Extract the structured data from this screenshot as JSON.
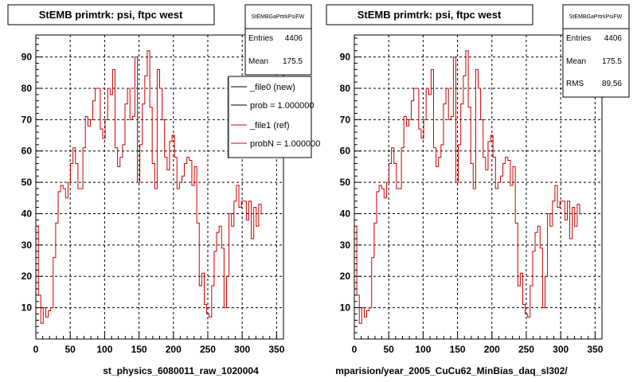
{
  "panels": [
    {
      "title": "StEMB primtrk: psi, ftpc west",
      "stats": {
        "name": "StEMBGaPrtrkPsiFW",
        "rows": [
          {
            "label": "Entries",
            "value": "4406"
          },
          {
            "label": "Mean",
            "value": "175.5"
          }
        ]
      },
      "legend": {
        "entries": [
          {
            "label": "_file0 (new)",
            "color": "#000000"
          },
          {
            "label": "prob = 1.000000",
            "color": "#000000"
          },
          {
            "label": "_file1 (ref)",
            "color": "#cc0000"
          },
          {
            "label": "probN = 1.000000",
            "color": "#cc0000"
          }
        ]
      },
      "xlabel": "st_physics_6080011_raw_1020004"
    },
    {
      "title": "StEMB primtrk: psi, ftpc west",
      "stats": {
        "name": "StEMBGaPrtrkPsiFW",
        "rows": [
          {
            "label": "Entries",
            "value": "4406"
          },
          {
            "label": "Mean",
            "value": "175.5"
          },
          {
            "label": "RMS",
            "value": "89.56"
          }
        ]
      },
      "xlabel": "mparision/year_2005_CuCu62_MinBias_daq_sl302/"
    }
  ],
  "chart_data": {
    "type": "histogram",
    "line_color": "#cc0000",
    "xlim": [
      0,
      360
    ],
    "ylim": [
      0,
      97
    ],
    "bin_width": 3.6,
    "x_ticks": [
      0,
      50,
      100,
      150,
      200,
      250,
      300,
      350
    ],
    "y_ticks": [
      10,
      20,
      30,
      40,
      50,
      60,
      70,
      80,
      90
    ],
    "grid": true,
    "values": [
      36,
      14,
      5,
      10,
      7,
      9,
      10,
      26,
      37,
      47,
      49,
      48,
      45,
      50,
      56,
      61,
      56,
      48,
      48,
      61,
      71,
      68,
      70,
      76,
      80,
      80,
      67,
      64,
      70,
      80,
      78,
      86,
      61,
      55,
      58,
      62,
      75,
      80,
      70,
      71,
      90,
      50,
      62,
      75,
      84,
      92,
      74,
      56,
      48,
      86,
      80,
      70,
      58,
      54,
      63,
      65,
      58,
      48,
      50,
      52,
      56,
      58,
      57,
      49,
      55,
      37,
      17,
      21,
      11,
      8,
      7,
      17,
      28,
      34,
      36,
      29,
      10,
      20,
      40,
      36,
      44,
      49,
      42,
      44,
      44,
      38,
      44,
      32,
      42,
      36,
      43,
      40
    ]
  }
}
